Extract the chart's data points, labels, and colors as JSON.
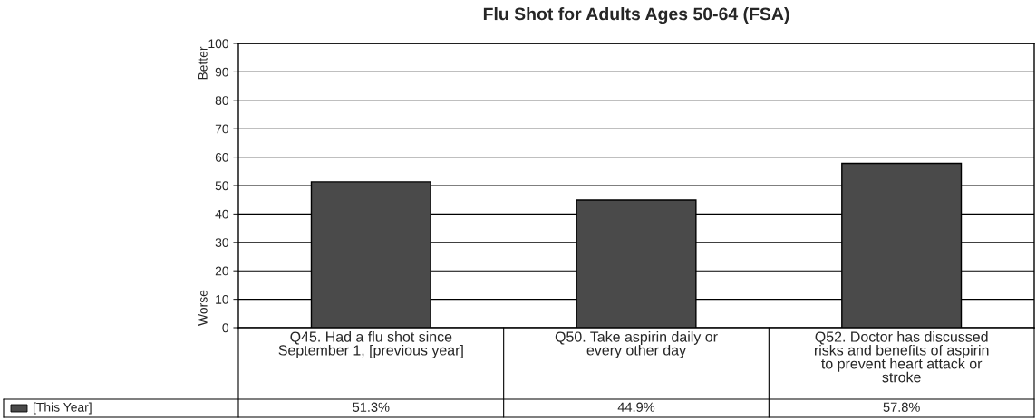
{
  "chart_data": {
    "type": "bar",
    "title": "Flu Shot for Adults Ages 50-64 (FSA)",
    "categories": [
      "Q45. Had a flu shot since\nSeptember 1, [previous year]",
      "Q50. Take aspirin daily or\nevery other day",
      "Q52. Doctor has discussed\nrisks and benefits of aspirin\nto prevent heart attack or\nstroke"
    ],
    "series": [
      {
        "name": "[This Year]",
        "color": "#4a4a4a",
        "values": [
          51.3,
          44.9,
          57.8
        ],
        "value_labels": [
          "51.3%",
          "44.9%",
          "57.8%"
        ]
      }
    ],
    "ylim": [
      0,
      100
    ],
    "yticks": [
      0,
      10,
      20,
      30,
      40,
      50,
      60,
      70,
      80,
      90,
      100
    ],
    "grid": "y",
    "annotations": [
      "Better",
      "Worse"
    ]
  }
}
